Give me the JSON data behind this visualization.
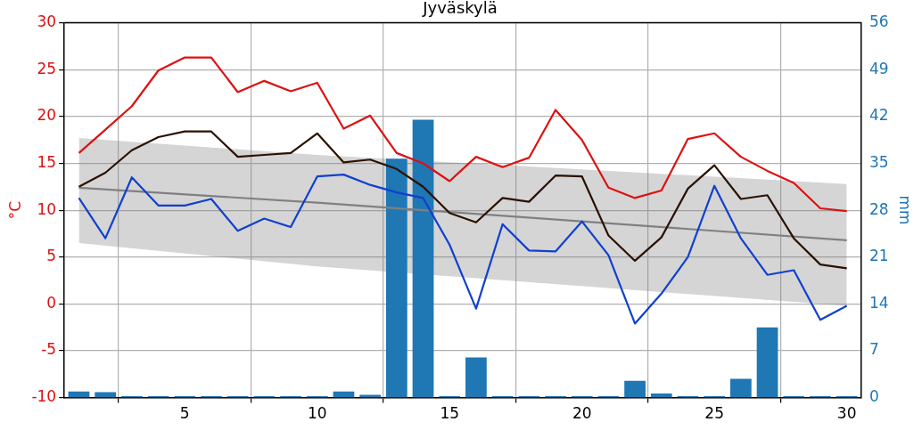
{
  "chart_data": {
    "type": "line",
    "title": "Jyväskylä",
    "ylabel": "°C",
    "y2label": "mm",
    "x": [
      1,
      2,
      3,
      4,
      5,
      6,
      7,
      8,
      9,
      10,
      11,
      12,
      13,
      14,
      15,
      16,
      17,
      18,
      19,
      20,
      21,
      22,
      23,
      24,
      25,
      26,
      27,
      28,
      29,
      30
    ],
    "xlim": [
      0.45,
      30.55
    ],
    "xticks": [
      5,
      10,
      15,
      20,
      25,
      30
    ],
    "ylim": [
      -10,
      30
    ],
    "yticks": [
      -10,
      -5,
      0,
      5,
      10,
      15,
      20,
      25,
      30
    ],
    "y2lim": [
      0,
      56
    ],
    "y2ticks": [
      0,
      7,
      14,
      21,
      28,
      35,
      42,
      49,
      56
    ],
    "grid": true,
    "legend": false,
    "marker": "none",
    "line_style": "solid",
    "series": [
      {
        "color": "#dd1111",
        "values": [
          16.1,
          18.6,
          21.1,
          24.9,
          26.3,
          26.3,
          22.6,
          23.8,
          22.7,
          23.6,
          18.7,
          20.1,
          16.1,
          15.0,
          13.1,
          15.7,
          14.6,
          15.6,
          20.7,
          17.5,
          12.4,
          11.3,
          12.1,
          17.6,
          18.2,
          15.7,
          14.2,
          12.9,
          10.2,
          9.9
        ]
      },
      {
        "color": "#2b1100",
        "values": [
          12.5,
          14.0,
          16.4,
          17.8,
          18.4,
          18.4,
          15.7,
          15.9,
          16.1,
          18.2,
          15.1,
          15.4,
          14.4,
          12.5,
          9.7,
          8.7,
          11.3,
          10.9,
          13.7,
          13.6,
          7.3,
          4.6,
          7.1,
          12.3,
          14.8,
          11.2,
          11.6,
          7.0,
          4.2,
          3.8
        ]
      },
      {
        "color": "#1040d0",
        "values": [
          11.3,
          7.0,
          13.5,
          10.5,
          10.5,
          11.2,
          7.8,
          9.1,
          8.2,
          13.6,
          13.8,
          12.7,
          11.9,
          11.3,
          6.3,
          -0.5,
          8.5,
          5.7,
          5.6,
          8.8,
          5.2,
          -2.1,
          1.1,
          5.0,
          12.6,
          7.0,
          3.1,
          3.6,
          -1.7,
          -0.2
        ]
      },
      {
        "color": "#808080",
        "x": [
          1,
          10,
          30
        ],
        "values": [
          12.4,
          10.8,
          6.8
        ],
        "lower": [
          6.5,
          4.0,
          -0.2
        ],
        "upper": [
          17.7,
          15.9,
          12.8
        ]
      },
      {
        "type": "bar",
        "axis": "y2",
        "color": "#1f77b4",
        "values": [
          0.9,
          0.8,
          0.2,
          0.2,
          0.2,
          0.2,
          0.2,
          0.2,
          0.2,
          0.2,
          0.9,
          0.4,
          35.7,
          41.5,
          0.2,
          6.0,
          0.2,
          0.2,
          0.2,
          0.2,
          0.2,
          2.5,
          0.6,
          0.2,
          0.2,
          2.8,
          10.5,
          0.2,
          0.2,
          0.2
        ]
      }
    ]
  }
}
